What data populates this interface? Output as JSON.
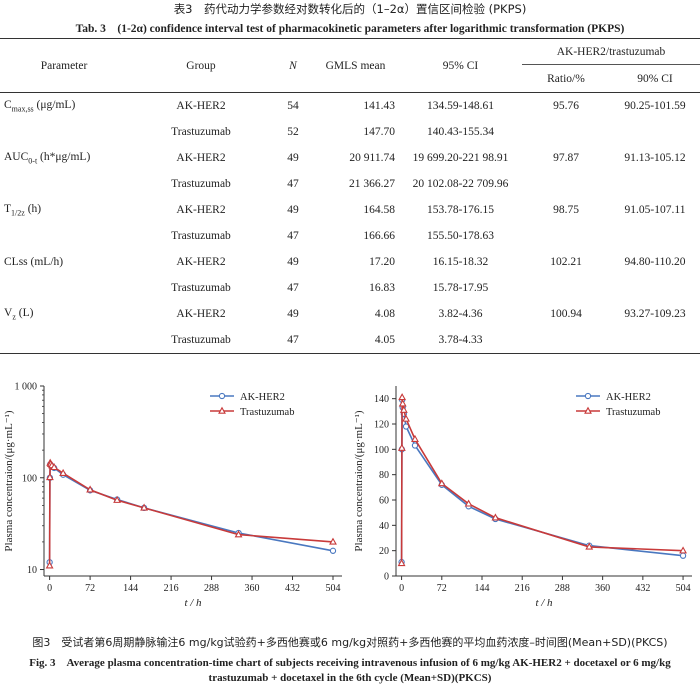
{
  "table": {
    "caption_cn": "表3　药代动力学参数经对数转化后的（1–2α）置信区间检验 (PKPS)",
    "caption_en": "Tab. 3　(1-2α) confidence interval test of pharmacokinetic parameters after logarithmic transformation  (PKPS)",
    "headers": {
      "parameter": "Parameter",
      "group": "Group",
      "n": "N",
      "gmls": "GMLS mean",
      "ci95": "95% CI",
      "ratio_group": "AK-HER2/trastuzumab",
      "ratio": "Ratio/%",
      "ci90": "90% CI"
    },
    "rows": [
      {
        "parameter": "C",
        "param_sub": "max,ss",
        "param_unit": " (μg/mL)",
        "group": "AK-HER2",
        "n": "54",
        "gmls": "141.43",
        "ci95": "134.59-148.61",
        "ratio": "95.76",
        "ci90": "90.25-101.59"
      },
      {
        "group": "Trastuzumab",
        "n": "52",
        "gmls": "147.70",
        "ci95": "140.43-155.34"
      },
      {
        "parameter": "AUC",
        "param_sub": "0-t",
        "param_unit": " (h*μg/mL)",
        "group": "AK-HER2",
        "n": "49",
        "gmls": "20 911.74",
        "ci95": "19 699.20-221 98.91",
        "ratio": "97.87",
        "ci90": "91.13-105.12"
      },
      {
        "group": "Trastuzumab",
        "n": "47",
        "gmls": "21 366.27",
        "ci95": "20 102.08-22 709.96"
      },
      {
        "parameter": "T",
        "param_sub": "1/2z",
        "param_unit": " (h)",
        "group": "AK-HER2",
        "n": "49",
        "gmls": "164.58",
        "ci95": "153.78-176.15",
        "ratio": "98.75",
        "ci90": "91.05-107.11"
      },
      {
        "group": "Trastuzumab",
        "n": "47",
        "gmls": "166.66",
        "ci95": "155.50-178.63"
      },
      {
        "parameter": "CLss (mL/h)",
        "group": "AK-HER2",
        "n": "49",
        "gmls": "17.20",
        "ci95": "16.15-18.32",
        "ratio": "102.21",
        "ci90": "94.80-110.20"
      },
      {
        "group": "Trastuzumab",
        "n": "47",
        "gmls": "16.83",
        "ci95": "15.78-17.95"
      },
      {
        "parameter": "V",
        "param_sub": "z",
        "param_unit": " (L)",
        "group": "AK-HER2",
        "n": "49",
        "gmls": "4.08",
        "ci95": "3.82-4.36",
        "ratio": "100.94",
        "ci90": "93.27-109.23"
      },
      {
        "group": "Trastuzumab",
        "n": "47",
        "gmls": "4.05",
        "ci95": "3.78-4.33"
      }
    ]
  },
  "figure": {
    "caption_cn": "图3　受试者第6周期静脉输注6 mg/kg试验药+多西他赛或6 mg/kg对照药+多西他赛的平均血药浓度–时间图(Mean+SD)(PKCS)",
    "caption_en_1": "Fig. 3　Average plasma concentration-time chart of subjects receiving intravenous infusion of 6 mg/kg AK-HER2 + docetaxel or 6 mg/kg",
    "caption_en_2": "trastuzumab + docetaxel in the 6th cycle (Mean+SD)(PKCS)"
  },
  "colors": {
    "ak": "#4a78c0",
    "tras": "#c83a3a"
  },
  "chart_data": [
    {
      "type": "line",
      "yscale": "log",
      "xlabel": "t / h",
      "ylabel": "Plasma concentraion/(μg·mL⁻¹)",
      "xlim": [
        -10,
        520
      ],
      "ylim": [
        8.5,
        1000
      ],
      "xticks": [
        0,
        72,
        144,
        216,
        288,
        360,
        432,
        504
      ],
      "yticks": [
        10,
        100,
        1000
      ],
      "ytick_labels": [
        "10",
        "100",
        "1 000"
      ],
      "legend": "top-right",
      "series": [
        {
          "name": "AK-HER2",
          "x": [
            0,
            0.5,
            1,
            2,
            4,
            8,
            24,
            72,
            120,
            168,
            336,
            504
          ],
          "y": [
            12,
            100,
            140,
            138,
            132,
            128,
            108,
            73,
            58,
            47,
            25,
            16
          ]
        },
        {
          "name": "Trastuzumab",
          "x": [
            0,
            0.5,
            1,
            2,
            4,
            8,
            24,
            72,
            120,
            168,
            336,
            504
          ],
          "y": [
            11,
            101,
            145,
            141,
            136,
            130,
            112,
            74,
            57,
            47,
            24,
            20
          ]
        }
      ]
    },
    {
      "type": "line",
      "yscale": "linear",
      "xlabel": "t / h",
      "ylabel": "Plasma concentraion/(μg·mL⁻¹)",
      "xlim": [
        -10,
        520
      ],
      "ylim": [
        0,
        150
      ],
      "xticks": [
        0,
        72,
        144,
        216,
        288,
        360,
        432,
        504
      ],
      "yticks": [
        0,
        20,
        40,
        60,
        80,
        100,
        120,
        140
      ],
      "legend": "top-right",
      "series": [
        {
          "name": "AK-HER2",
          "x": [
            0,
            0.5,
            1,
            2,
            4,
            8,
            24,
            72,
            120,
            168,
            336,
            504
          ],
          "y": [
            11,
            100,
            139,
            133,
            128,
            118,
            103,
            72,
            55,
            45,
            24,
            16
          ]
        },
        {
          "name": "Trastuzumab",
          "x": [
            0,
            0.5,
            1,
            2,
            4,
            8,
            24,
            72,
            120,
            168,
            336,
            504
          ],
          "y": [
            10,
            101,
            141,
            136,
            131,
            124,
            108,
            73,
            57,
            46,
            23,
            20
          ]
        }
      ]
    }
  ]
}
